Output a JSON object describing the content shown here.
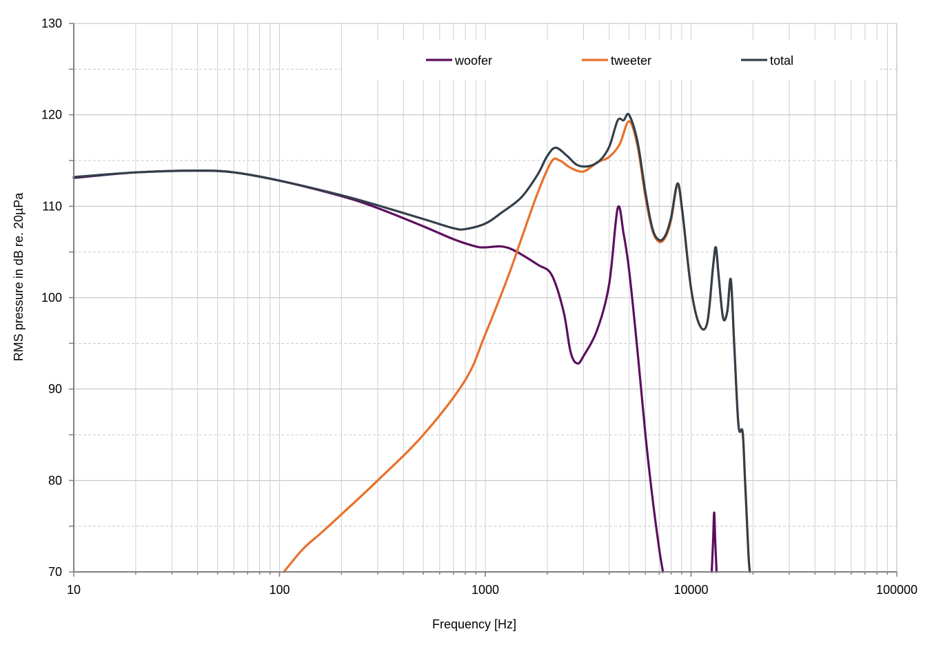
{
  "chart_data": {
    "type": "line",
    "xscale": "log",
    "xlabel": "Frequency [Hz]",
    "ylabel": "RMS pressure in dB re. 20µPa",
    "xlim": [
      10,
      100000
    ],
    "ylim": [
      70,
      130
    ],
    "xticks": [
      "10",
      "100",
      "1000",
      "10000",
      "100000"
    ],
    "yticks": [
      "70",
      "80",
      "90",
      "100",
      "110",
      "120",
      "130"
    ],
    "grid": true,
    "legend_position": "top-right",
    "series": [
      {
        "name": "woofer",
        "color": "#5c0f5e",
        "points": [
          [
            10,
            113.1
          ],
          [
            20,
            113.7
          ],
          [
            40,
            113.9
          ],
          [
            60,
            113.7
          ],
          [
            100,
            112.8
          ],
          [
            200,
            111.1
          ],
          [
            300,
            109.8
          ],
          [
            500,
            107.8
          ],
          [
            700,
            106.4
          ],
          [
            900,
            105.6
          ],
          [
            1000,
            105.5
          ],
          [
            1200,
            105.6
          ],
          [
            1400,
            105.1
          ],
          [
            1800,
            103.6
          ],
          [
            2100,
            102.5
          ],
          [
            2400,
            98.5
          ],
          [
            2600,
            94.0
          ],
          [
            2800,
            92.8
          ],
          [
            3000,
            93.6
          ],
          [
            3500,
            96.5
          ],
          [
            4000,
            101.5
          ],
          [
            4400,
            109.8
          ],
          [
            4700,
            107.0
          ],
          [
            5000,
            103.0
          ],
          [
            5500,
            94.0
          ],
          [
            6000,
            85.0
          ],
          [
            6500,
            78.0
          ],
          [
            7000,
            72.5
          ],
          [
            7300,
            70.0
          ]
        ]
      },
      {
        "name": "tweeter",
        "color": "#e8702a",
        "points": [
          [
            105,
            70.0
          ],
          [
            130,
            72.5
          ],
          [
            160,
            74.3
          ],
          [
            200,
            76.3
          ],
          [
            300,
            80.0
          ],
          [
            500,
            85.0
          ],
          [
            800,
            91.0
          ],
          [
            1000,
            96.0
          ],
          [
            1300,
            102.5
          ],
          [
            1500,
            106.5
          ],
          [
            1800,
            111.5
          ],
          [
            2100,
            114.9
          ],
          [
            2300,
            115.0
          ],
          [
            2600,
            114.2
          ],
          [
            3000,
            113.8
          ],
          [
            3500,
            114.8
          ],
          [
            4000,
            115.4
          ],
          [
            4500,
            116.8
          ],
          [
            5000,
            119.3
          ],
          [
            5500,
            116.5
          ],
          [
            6000,
            111.0
          ],
          [
            6500,
            107.3
          ],
          [
            7000,
            106.1
          ],
          [
            7500,
            106.6
          ],
          [
            8000,
            108.5
          ],
          [
            8600,
            112.3
          ],
          [
            9100,
            109.0
          ],
          [
            10000,
            101.0
          ],
          [
            11000,
            97.0
          ],
          [
            12000,
            97.3
          ],
          [
            12800,
            103.5
          ],
          [
            13200,
            105.5
          ],
          [
            13600,
            102.5
          ],
          [
            14300,
            97.8
          ],
          [
            15000,
            98.5
          ],
          [
            15600,
            102.0
          ],
          [
            16200,
            95.0
          ],
          [
            17000,
            86.0
          ],
          [
            17800,
            85.3
          ],
          [
            18300,
            80.0
          ],
          [
            19000,
            72.0
          ],
          [
            19300,
            70.0
          ]
        ]
      },
      {
        "name": "total",
        "color": "#333f4b",
        "points": [
          [
            10,
            113.2
          ],
          [
            20,
            113.7
          ],
          [
            40,
            113.9
          ],
          [
            60,
            113.7
          ],
          [
            100,
            112.8
          ],
          [
            200,
            111.2
          ],
          [
            300,
            110.1
          ],
          [
            500,
            108.6
          ],
          [
            700,
            107.6
          ],
          [
            800,
            107.5
          ],
          [
            1000,
            108.1
          ],
          [
            1200,
            109.3
          ],
          [
            1500,
            111.0
          ],
          [
            1800,
            113.5
          ],
          [
            2000,
            115.5
          ],
          [
            2200,
            116.4
          ],
          [
            2500,
            115.5
          ],
          [
            2800,
            114.5
          ],
          [
            3200,
            114.4
          ],
          [
            3600,
            115.0
          ],
          [
            4000,
            116.5
          ],
          [
            4400,
            119.4
          ],
          [
            4700,
            119.4
          ],
          [
            5000,
            120.0
          ],
          [
            5500,
            117.0
          ],
          [
            6000,
            111.5
          ],
          [
            6500,
            107.5
          ],
          [
            7000,
            106.3
          ],
          [
            7500,
            106.8
          ],
          [
            8000,
            108.8
          ],
          [
            8600,
            112.5
          ],
          [
            9100,
            109.2
          ],
          [
            10000,
            101.0
          ],
          [
            11000,
            97.0
          ],
          [
            12000,
            97.3
          ],
          [
            12800,
            103.5
          ],
          [
            13200,
            105.5
          ],
          [
            13600,
            102.5
          ],
          [
            14300,
            97.8
          ],
          [
            15000,
            98.5
          ],
          [
            15600,
            102.0
          ],
          [
            16200,
            95.0
          ],
          [
            17000,
            86.0
          ],
          [
            17800,
            85.3
          ],
          [
            18300,
            80.0
          ],
          [
            19000,
            72.0
          ],
          [
            19300,
            70.0
          ]
        ]
      },
      {
        "name": "woofer",
        "color": "#5c0f5e",
        "legend": false,
        "points": [
          [
            12600,
            70.0
          ],
          [
            12800,
            73.5
          ],
          [
            12950,
            76.5
          ],
          [
            13100,
            73.5
          ],
          [
            13300,
            70.0
          ]
        ]
      }
    ]
  }
}
